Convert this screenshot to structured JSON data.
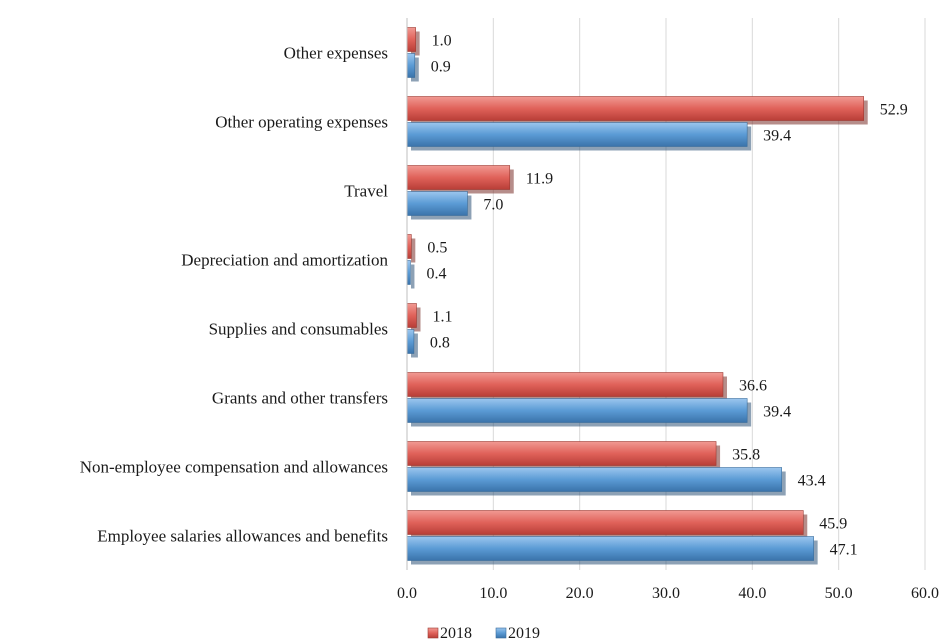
{
  "chart_data": {
    "type": "bar",
    "orientation": "horizontal",
    "categories": [
      "Other expenses",
      "Other operating expenses",
      "Travel",
      "Depreciation and amortization",
      "Supplies and consumables",
      "Grants and other transfers",
      "Non-employee compensation and allowances",
      "Employee salaries allowances and benefits"
    ],
    "series": [
      {
        "name": "2018",
        "color": "#e0625a",
        "values": [
          1.0,
          52.9,
          11.9,
          0.5,
          1.1,
          36.6,
          35.8,
          45.9
        ],
        "labels": [
          "1.0",
          "52.9",
          "11.9",
          "0.5",
          "1.1",
          "36.6",
          "35.8",
          "45.9"
        ]
      },
      {
        "name": "2019",
        "color": "#5b9bd5",
        "values": [
          0.9,
          39.4,
          7.0,
          0.4,
          0.8,
          39.4,
          43.4,
          47.1
        ],
        "labels": [
          "0.9",
          "39.4",
          "7.0",
          "0.4",
          "0.8",
          "39.4",
          "43.4",
          "47.1"
        ]
      }
    ],
    "xlim": [
      0,
      60
    ],
    "xticks": [
      "0.0",
      "10.0",
      "20.0",
      "30.0",
      "40.0",
      "50.0",
      "60.0"
    ],
    "grid": true,
    "legend_position": "bottom"
  }
}
